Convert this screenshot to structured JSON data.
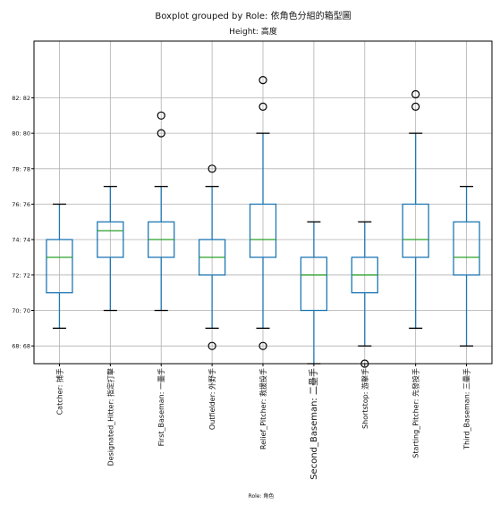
{
  "chart_data": {
    "type": "boxplot",
    "title": "Boxplot grouped by Role: 依角色分組的箱型圖",
    "subtitle": "Height: 高度",
    "xlabel": "Role: 角色",
    "ylabel": "",
    "ylim": [
      67,
      85.2
    ],
    "grid": true,
    "yticks": [
      {
        "value": 68,
        "label": "68: 68"
      },
      {
        "value": 70,
        "label": "70: 70"
      },
      {
        "value": 72,
        "label": "72: 72"
      },
      {
        "value": 74,
        "label": "74: 74"
      },
      {
        "value": 76,
        "label": "76: 76"
      },
      {
        "value": 78,
        "label": "78: 78"
      },
      {
        "value": 80,
        "label": "80: 80"
      },
      {
        "value": 82,
        "label": "82: 82"
      }
    ],
    "categories": [
      "Catcher: 捕手",
      "Designated_Hitter: 指定打擊",
      "First_Baseman: 一壘手",
      "Outfielder: 外野手",
      "Relief_Pitcher: 救援投手",
      "Second_Baseman: 二壘手",
      "Shortstop: 游擊手",
      "Starting_Pitcher: 先發投手",
      "Third_Baseman: 三壘手"
    ],
    "boxes": [
      {
        "whislo": 69,
        "q1": 71,
        "med": 73,
        "q3": 74,
        "whishi": 76,
        "fliers": []
      },
      {
        "whislo": 70,
        "q1": 73,
        "med": 74.5,
        "q3": 75,
        "whishi": 77,
        "fliers": []
      },
      {
        "whislo": 70,
        "q1": 73,
        "med": 74,
        "q3": 75,
        "whishi": 77,
        "fliers": [
          80,
          81
        ]
      },
      {
        "whislo": 69,
        "q1": 72,
        "med": 73,
        "q3": 74,
        "whishi": 77,
        "fliers": [
          78,
          68
        ]
      },
      {
        "whislo": 69,
        "q1": 73,
        "med": 74,
        "q3": 76,
        "whishi": 80,
        "fliers": [
          83,
          81.5,
          68
        ]
      },
      {
        "whislo": 67,
        "q1": 70,
        "med": 72,
        "q3": 73,
        "whishi": 75,
        "fliers": []
      },
      {
        "whislo": 68,
        "q1": 71,
        "med": 72,
        "q3": 73,
        "whishi": 75,
        "fliers": [
          67
        ]
      },
      {
        "whislo": 69,
        "q1": 73,
        "med": 74,
        "q3": 76,
        "whishi": 80,
        "fliers": [
          82.2,
          81.5
        ]
      },
      {
        "whislo": 68,
        "q1": 72,
        "med": 73,
        "q3": 75,
        "whishi": 77,
        "fliers": []
      }
    ],
    "colors": {
      "box": "#1f77b4",
      "median": "#2ca02c",
      "grid": "#b0b0b0",
      "axis": "#000000"
    }
  }
}
